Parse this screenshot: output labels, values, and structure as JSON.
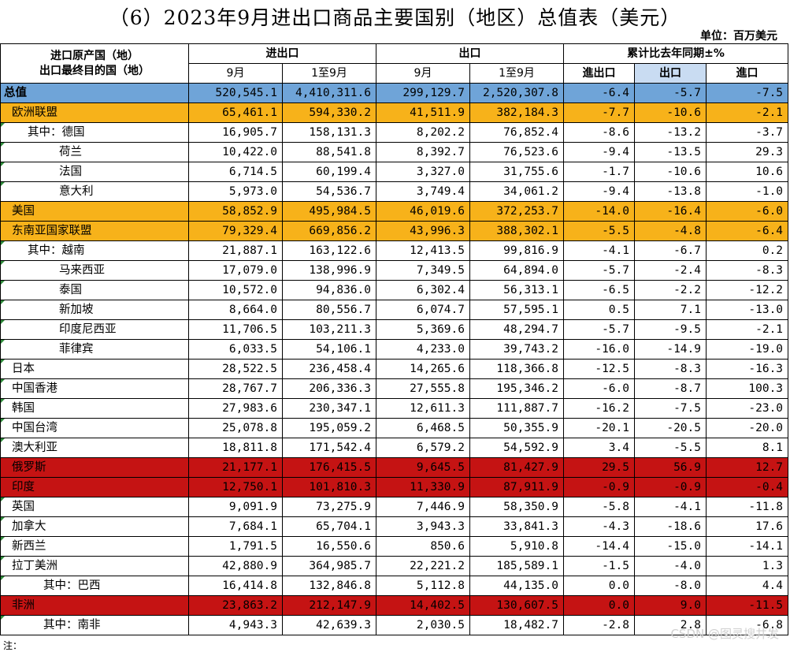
{
  "title": "（6）2023年9月进出口商品主要国别（地区）总值表（美元）",
  "unit": "单位：百万美元",
  "header": {
    "origin_line1": "进口原产国（地）",
    "origin_line2": "出口最终目的国（地）",
    "group_total": "进出口",
    "group_export": "出口",
    "group_yoy": "累计比去年同期±%",
    "sep": "9月",
    "jan_sep": "1至9月",
    "yoy_total": "進出口",
    "yoy_export": "出口",
    "yoy_import": "進口"
  },
  "colors": {
    "total": "#6fa4d8",
    "highlight_orange": "#f7b21a",
    "highlight_red": "#c51313",
    "selected_header": "#c9dcf2"
  },
  "rows": [
    {
      "name": "总值",
      "indent": 0,
      "style": "total",
      "v": [
        "520,545.1",
        "4,410,311.6",
        "299,129.7",
        "2,520,307.8",
        "-6.4",
        "-5.7",
        "-7.5"
      ]
    },
    {
      "name": "欧洲联盟",
      "indent": 1,
      "style": "orange",
      "v": [
        "65,461.1",
        "594,330.2",
        "41,511.9",
        "382,184.3",
        "-7.7",
        "-10.6",
        "-2.1"
      ]
    },
    {
      "name": "其中：德国",
      "indent": 3,
      "style": "white",
      "v": [
        "16,905.7",
        "158,131.3",
        "8,202.2",
        "76,852.4",
        "-8.6",
        "-13.2",
        "-3.7"
      ]
    },
    {
      "name": "荷兰",
      "indent": 7,
      "style": "white",
      "v": [
        "10,422.0",
        "88,541.8",
        "8,392.7",
        "76,523.6",
        "-9.4",
        "-13.5",
        "29.3"
      ]
    },
    {
      "name": "法国",
      "indent": 7,
      "style": "white",
      "v": [
        "6,714.5",
        "60,199.4",
        "3,327.0",
        "31,755.6",
        "-1.7",
        "-10.6",
        "10.6"
      ]
    },
    {
      "name": "意大利",
      "indent": 7,
      "style": "white",
      "v": [
        "5,973.0",
        "54,536.7",
        "3,749.4",
        "34,061.2",
        "-9.4",
        "-13.8",
        "-1.0"
      ]
    },
    {
      "name": "美国",
      "indent": 1,
      "style": "orange",
      "v": [
        "58,852.9",
        "495,984.5",
        "46,019.6",
        "372,253.7",
        "-14.0",
        "-16.4",
        "-6.0"
      ]
    },
    {
      "name": "东南亚国家联盟",
      "indent": 1,
      "style": "orange",
      "v": [
        "79,329.4",
        "669,856.2",
        "43,996.3",
        "388,302.1",
        "-5.5",
        "-4.8",
        "-6.4"
      ]
    },
    {
      "name": "其中：越南",
      "indent": 3,
      "style": "white",
      "v": [
        "21,887.1",
        "163,122.6",
        "12,413.5",
        "99,816.9",
        "-4.1",
        "-6.7",
        "0.2"
      ]
    },
    {
      "name": "马来西亚",
      "indent": 7,
      "style": "white",
      "v": [
        "17,079.0",
        "138,996.9",
        "7,349.5",
        "64,894.0",
        "-5.7",
        "-2.4",
        "-8.3"
      ]
    },
    {
      "name": "泰国",
      "indent": 7,
      "style": "white",
      "v": [
        "10,572.0",
        "94,836.0",
        "6,302.4",
        "56,313.1",
        "-6.5",
        "-2.2",
        "-12.2"
      ]
    },
    {
      "name": "新加坡",
      "indent": 7,
      "style": "white",
      "v": [
        "8,664.0",
        "80,556.7",
        "6,074.7",
        "57,595.1",
        "0.5",
        "7.1",
        "-13.0"
      ]
    },
    {
      "name": "印度尼西亚",
      "indent": 7,
      "style": "white",
      "v": [
        "11,706.5",
        "103,211.3",
        "5,369.6",
        "48,294.7",
        "-5.7",
        "-9.5",
        "-2.1"
      ]
    },
    {
      "name": "菲律宾",
      "indent": 7,
      "style": "white",
      "v": [
        "6,033.5",
        "54,106.1",
        "4,233.0",
        "39,743.2",
        "-16.0",
        "-14.9",
        "-19.0"
      ]
    },
    {
      "name": "日本",
      "indent": 1,
      "style": "white",
      "v": [
        "28,522.5",
        "236,458.4",
        "14,265.6",
        "118,366.8",
        "-12.5",
        "-8.3",
        "-16.3"
      ]
    },
    {
      "name": "中国香港",
      "indent": 1,
      "style": "white",
      "v": [
        "28,767.7",
        "206,336.3",
        "27,555.8",
        "195,346.2",
        "-6.0",
        "-8.7",
        "100.3"
      ]
    },
    {
      "name": "韩国",
      "indent": 1,
      "style": "white",
      "v": [
        "27,983.6",
        "230,347.1",
        "12,611.3",
        "111,887.7",
        "-16.2",
        "-7.5",
        "-23.0"
      ]
    },
    {
      "name": "中国台湾",
      "indent": 1,
      "style": "white",
      "v": [
        "25,078.8",
        "195,059.2",
        "6,468.5",
        "50,355.9",
        "-20.1",
        "-20.5",
        "-20.0"
      ]
    },
    {
      "name": "澳大利亚",
      "indent": 1,
      "style": "white",
      "v": [
        "18,811.8",
        "171,542.4",
        "6,579.2",
        "54,592.9",
        "3.4",
        "-5.5",
        "8.1"
      ]
    },
    {
      "name": "俄罗斯",
      "indent": 1,
      "style": "red",
      "v": [
        "21,177.1",
        "176,415.5",
        "9,645.5",
        "81,427.9",
        "29.5",
        "56.9",
        "12.7"
      ]
    },
    {
      "name": "印度",
      "indent": 1,
      "style": "red",
      "v": [
        "12,750.1",
        "101,810.3",
        "11,330.9",
        "87,911.9",
        "-0.9",
        "-0.9",
        "-0.4"
      ]
    },
    {
      "name": "英国",
      "indent": 1,
      "style": "white",
      "v": [
        "9,091.9",
        "73,275.9",
        "7,446.9",
        "58,350.9",
        "-5.8",
        "-4.1",
        "-11.8"
      ]
    },
    {
      "name": "加拿大",
      "indent": 1,
      "style": "white",
      "v": [
        "7,684.1",
        "65,704.1",
        "3,943.3",
        "33,841.3",
        "-4.3",
        "-18.6",
        "17.6"
      ]
    },
    {
      "name": "新西兰",
      "indent": 1,
      "style": "white",
      "v": [
        "1,791.5",
        "16,550.6",
        "850.6",
        "5,910.8",
        "-14.4",
        "-15.0",
        "-14.1"
      ]
    },
    {
      "name": "拉丁美洲",
      "indent": 1,
      "style": "white",
      "v": [
        "42,880.9",
        "364,985.7",
        "22,221.2",
        "185,589.1",
        "-1.5",
        "-4.0",
        "1.3"
      ]
    },
    {
      "name": "其中：巴西",
      "indent": 5,
      "style": "white",
      "v": [
        "16,414.8",
        "132,846.8",
        "5,112.8",
        "44,135.0",
        "0.0",
        "-8.0",
        "4.4"
      ]
    },
    {
      "name": "非洲",
      "indent": 1,
      "style": "red",
      "v": [
        "23,863.2",
        "212,147.9",
        "14,402.5",
        "130,607.5",
        "0.0",
        "9.0",
        "-11.5"
      ]
    },
    {
      "name": "其中：南非",
      "indent": 5,
      "style": "white",
      "v": [
        "4,943.3",
        "42,639.3",
        "2,030.5",
        "18,482.7",
        "-2.8",
        "2.8",
        "-6.8"
      ]
    }
  ],
  "watermark": "CSDN @图灵搜井发",
  "note": "注："
}
